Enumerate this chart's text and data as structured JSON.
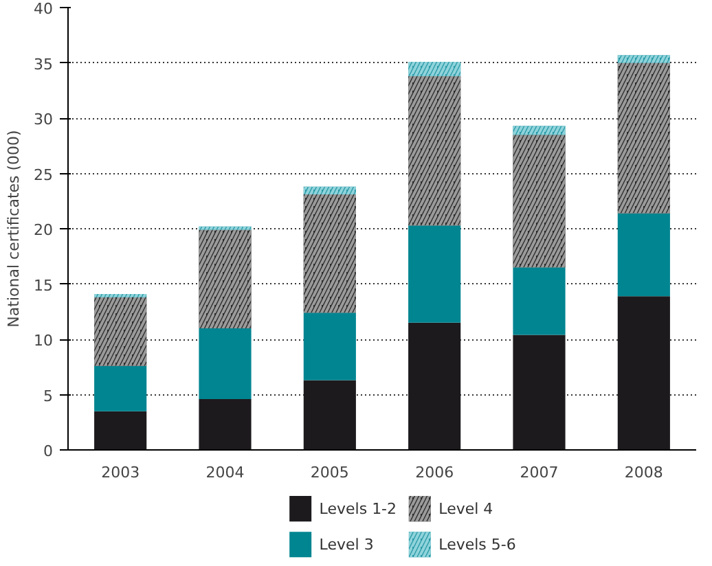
{
  "chart_data": {
    "type": "bar",
    "stacked": true,
    "ylabel": "National certificates (000)",
    "categories": [
      "2003",
      "2004",
      "2005",
      "2006",
      "2007",
      "2008"
    ],
    "series": [
      {
        "name": "Levels 1-2",
        "color": "#1c1a1d",
        "values": [
          3.5,
          4.6,
          6.3,
          11.5,
          10.4,
          13.9
        ]
      },
      {
        "name": "Level 3",
        "color": "#008591",
        "values": [
          4.1,
          6.4,
          6.1,
          8.8,
          6.1,
          7.5
        ]
      },
      {
        "name": "Level 4",
        "color": "#2a2a2a",
        "values": [
          6.2,
          8.9,
          10.7,
          13.5,
          12.0,
          13.6
        ]
      },
      {
        "name": "Levels 5-6",
        "color": "#2a9aa6",
        "values": [
          0.3,
          0.3,
          0.7,
          1.3,
          0.8,
          0.7
        ]
      }
    ],
    "ylim": [
      0,
      40
    ],
    "yticks": [
      0,
      5,
      10,
      15,
      20,
      25,
      30,
      35,
      40
    ],
    "grid": "y",
    "legend": "bottom"
  }
}
